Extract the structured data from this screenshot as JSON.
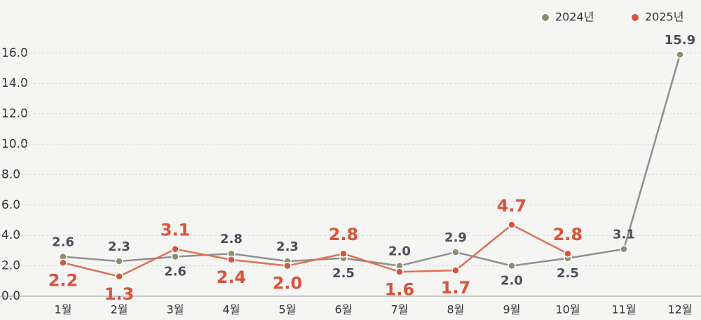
{
  "chart_data": {
    "type": "line",
    "categories": [
      "1월",
      "2월",
      "3월",
      "4월",
      "5월",
      "6월",
      "7월",
      "8월",
      "9월",
      "10월",
      "11월",
      "12월"
    ],
    "series": [
      {
        "name": "2024년",
        "color": "#8a8f6e",
        "values": [
          2.6,
          2.3,
          2.6,
          2.8,
          2.3,
          2.5,
          2.0,
          2.9,
          2.0,
          2.5,
          3.1,
          15.9
        ],
        "value_labels": [
          "2.6",
          "2.3",
          "2.6",
          "2.8",
          "2.3",
          "2.5",
          "2.0",
          "2.9",
          "2.0",
          "2.5",
          "3.1",
          "15.9"
        ]
      },
      {
        "name": "2025년",
        "color": "#d9533c",
        "values": [
          2.2,
          1.3,
          3.1,
          2.4,
          2.0,
          2.8,
          1.6,
          1.7,
          4.7,
          2.8,
          null,
          null
        ],
        "value_labels": [
          "2.2",
          "1.3",
          "3.1",
          "2.4",
          "2.0",
          "2.8",
          "1.6",
          "1.7",
          "4.7",
          "2.8",
          null,
          null
        ]
      }
    ],
    "ylim": [
      0,
      17.5
    ],
    "yticks": [
      {
        "value": 0,
        "label": "0.0"
      },
      {
        "value": 2,
        "label": "2.0"
      },
      {
        "value": 4,
        "label": "4.0"
      },
      {
        "value": 6,
        "label": "6.0"
      },
      {
        "value": 8,
        "label": "8.0"
      },
      {
        "value": 10,
        "label": "10.0"
      },
      {
        "value": 12,
        "label": "12.0"
      },
      {
        "value": 14,
        "label": "14.0"
      },
      {
        "value": 16,
        "label": "16.0"
      }
    ],
    "grid": true,
    "legend": "top-right"
  }
}
